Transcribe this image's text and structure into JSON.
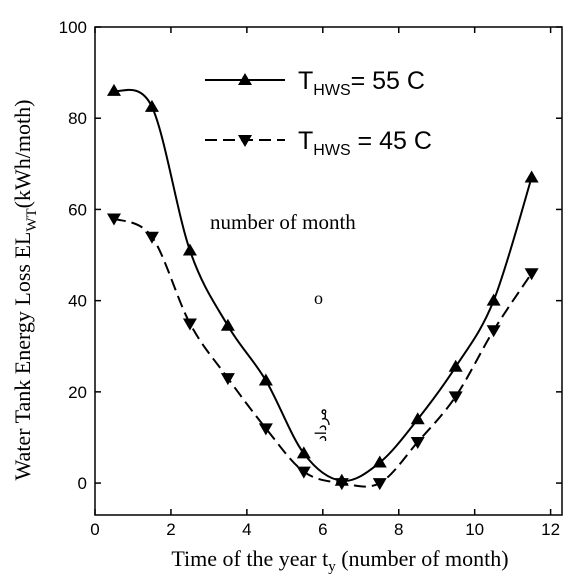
{
  "chart_data": {
    "type": "line",
    "ylabel": {
      "text": "Water Tank Energy Loss EL",
      "sub": "WT",
      "tail": "(kWh/moth)"
    },
    "xlabel": {
      "text": "Time of the year t",
      "sub": "y",
      "tail": " (number of month)"
    },
    "annotations": [
      "number of month",
      "o",
      "مرداد"
    ],
    "x": [
      0.5,
      1.5,
      2.5,
      3.5,
      4.5,
      5.5,
      6.5,
      7.5,
      8.5,
      9.5,
      10.5,
      11.5
    ],
    "series": [
      {
        "name": "T",
        "name_sub": "HWS",
        "name_rest": "= 55 C",
        "color": "#000000",
        "dash": false,
        "marker": "up",
        "values": [
          86,
          82.5,
          51,
          34.5,
          22.5,
          6.5,
          0.5,
          4.5,
          14,
          25.5,
          40,
          67
        ]
      },
      {
        "name": "T",
        "name_sub": "HWS",
        "name_rest": " = 45 C",
        "color": "#000000",
        "dash": true,
        "marker": "down",
        "values": [
          58,
          54,
          35,
          23,
          12,
          2.5,
          0,
          0,
          9,
          19,
          33.5,
          46
        ]
      }
    ],
    "xlim": [
      0,
      12.3
    ],
    "ylim": [
      -7,
      100
    ],
    "xticks": [
      0,
      2,
      4,
      6,
      8,
      10,
      12
    ],
    "yticks": [
      0,
      20,
      40,
      60,
      80,
      100
    ]
  }
}
